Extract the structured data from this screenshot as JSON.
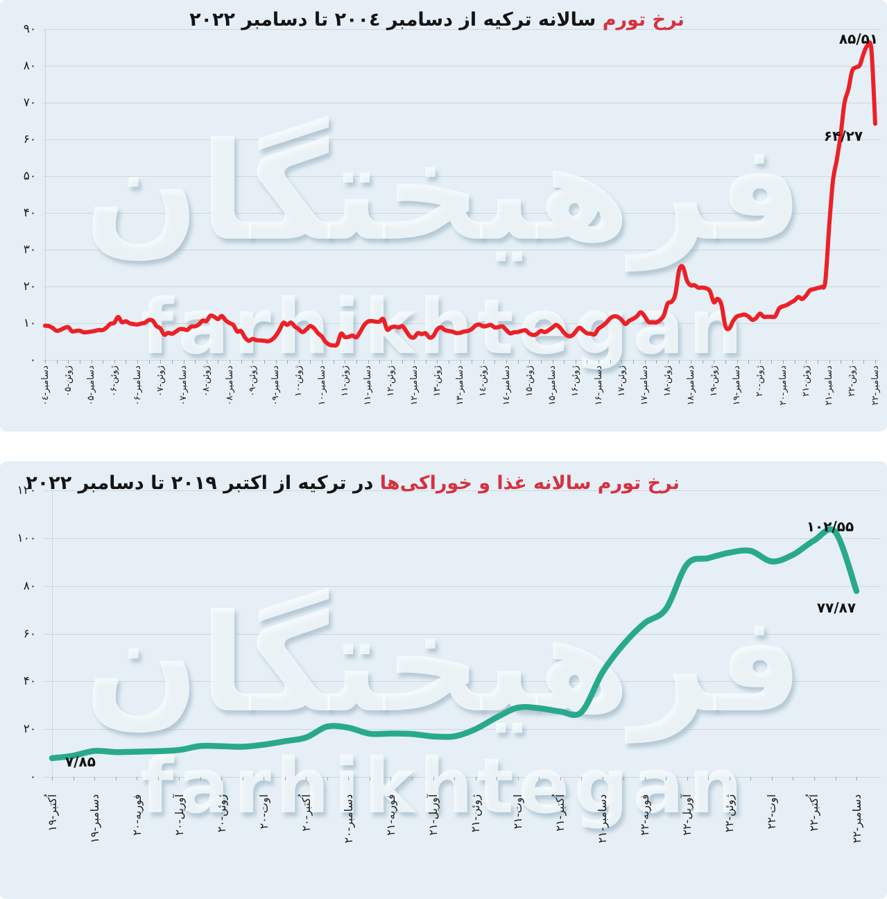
{
  "watermark": {
    "fa": "فرهیختگان",
    "en": "farhikhtegan"
  },
  "colors": {
    "title_highlight": "#d8303f",
    "panel_background": "#e5eff5",
    "line_red": "#eb2127",
    "line_teal": "#29a98b"
  },
  "chart_data": [
    {
      "type": "line",
      "title_highlight": "نرخ تورم",
      "title_rest": "سالانه ترکیه از دسامبر ۲۰۰٤ تا دسامبر ۲۰۲۲",
      "ylabel": "",
      "xlabel": "",
      "ylim": [
        0,
        90
      ],
      "y_grid_step": 10,
      "grid": true,
      "legend": false,
      "y_tick_labels": [
        "۹۰",
        "۸۰",
        "۷۰",
        "۶۰",
        "۵۰",
        "۴۰",
        "۳۰",
        "۲۰",
        "۱۰",
        "۰"
      ],
      "x_tick_labels": [
        "دسامبر-۰٤",
        "ژوئن-۰۵",
        "دسامبر-۰۵",
        "ژوئن-۰۶",
        "دسامبر-۰۶",
        "ژوئن-۰۷",
        "دسامبر-۰۷",
        "ژوئن-۰۸",
        "دسامبر-۰۸",
        "ژوئن-۰۹",
        "دسامبر-۰۹",
        "ژوئن-۱۰",
        "دسامبر-۱۰",
        "ژوئن-۱۱",
        "دسامبر-۱۱",
        "ژوئن-۱۲",
        "دسامبر-۱۲",
        "ژوئن-۱۳",
        "دسامبر-۱۳",
        "ژوئن-۱٤",
        "دسامبر-۱٤",
        "ژوئن-۱۵",
        "دسامبر-۱۵",
        "ژوئن-۱۶",
        "دسامبر-۱۶",
        "ژوئن-۱۷",
        "دسامبر-۱۷",
        "ژوئن-۱۸",
        "دسامبر-۱۸",
        "ژوئن-۱۹",
        "دسامبر-۱۹",
        "ژوئن-۲۰",
        "دسامبر-۲۰",
        "ژوئن-۲۱",
        "دسامبر-۲۱",
        "ژوئن-۲۲",
        "دسامبر-۲۲"
      ],
      "label_every_nth_point": 6,
      "series": [
        {
          "name": "annual-inflation",
          "color": "#eb2127",
          "values": [
            9.32,
            9.23,
            8.69,
            7.94,
            8.18,
            8.7,
            8.95,
            7.82,
            7.91,
            7.99,
            7.52,
            7.61,
            7.72,
            7.93,
            8.15,
            8.16,
            8.83,
            9.86,
            10.12,
            11.69,
            10.26,
            10.55,
            9.98,
            9.79,
            9.65,
            9.93,
            10.16,
            10.86,
            10.72,
            9.23,
            8.6,
            6.9,
            7.39,
            7.12,
            7.7,
            8.4,
            8.39,
            8.17,
            9.1,
            9.15,
            9.66,
            10.74,
            10.61,
            12.06,
            11.77,
            11.13,
            11.99,
            10.76,
            10.06,
            9.5,
            7.73,
            7.89,
            6.13,
            5.24,
            5.73,
            5.39,
            5.33,
            5.27,
            5.08,
            5.53,
            6.53,
            8.19,
            10.13,
            9.56,
            10.19,
            9.1,
            8.37,
            7.58,
            8.33,
            9.24,
            8.62,
            7.29,
            6.4,
            4.9,
            4.16,
            3.99,
            4.26,
            7.17,
            6.24,
            6.31,
            6.65,
            6.15,
            7.66,
            9.48,
            10.45,
            10.61,
            10.43,
            10.43,
            11.14,
            8.28,
            8.87,
            9.07,
            8.88,
            9.19,
            7.8,
            6.37,
            6.16,
            7.31,
            7.03,
            7.29,
            6.13,
            6.51,
            8.3,
            8.88,
            8.17,
            7.88,
            7.71,
            7.32,
            7.4,
            7.75,
            7.89,
            8.39,
            9.38,
            9.66,
            9.16,
            9.32,
            9.54,
            8.86,
            8.96,
            9.15,
            8.17,
            7.24,
            7.55,
            7.61,
            7.91,
            8.09,
            7.2,
            6.81,
            7.14,
            7.95,
            7.58,
            8.1,
            8.81,
            9.58,
            8.78,
            7.46,
            6.57,
            6.58,
            7.64,
            8.79,
            8.05,
            7.28,
            7.16,
            7.0,
            8.53,
            9.22,
            10.13,
            11.29,
            11.87,
            11.72,
            10.9,
            9.79,
            10.68,
            11.2,
            11.9,
            12.98,
            11.92,
            10.35,
            10.26,
            10.23,
            10.85,
            12.15,
            15.39,
            15.85,
            17.9,
            24.52,
            25.24,
            21.62,
            20.3,
            20.35,
            19.67,
            19.71,
            19.5,
            18.71,
            15.72,
            16.65,
            15.01,
            9.26,
            8.55,
            10.56,
            11.84,
            12.15,
            12.37,
            11.86,
            10.94,
            11.39,
            12.62,
            11.76,
            11.77,
            11.75,
            11.89,
            14.03,
            14.6,
            14.97,
            15.61,
            16.19,
            17.14,
            16.59,
            17.53,
            18.95,
            19.25,
            19.58,
            19.89,
            21.31,
            36.08,
            48.69,
            54.44,
            61.14,
            69.97,
            73.5,
            78.62,
            79.6,
            80.21,
            83.45,
            85.51,
            84.39,
            64.27
          ]
        }
      ],
      "annotations": [
        {
          "id": "peak",
          "text": "۸۵/۵۱",
          "value": 85.51
        },
        {
          "id": "last",
          "text": "۶۴/۲۷",
          "value": 64.27
        }
      ]
    },
    {
      "type": "line",
      "title_highlight": "نرخ تورم سالانه غذا و خوراکی‌ها",
      "title_rest": "در ترکیه از اکتبر ۲۰۱۹ تا دسامبر ۲۰۲۲",
      "ylabel": "",
      "xlabel": "",
      "ylim": [
        0,
        120
      ],
      "y_grid_step": 20,
      "grid": true,
      "legend": false,
      "y_tick_labels": [
        "۱۲۰",
        "۱۰۰",
        "۸۰",
        "۶۰",
        "۴۰",
        "۲۰",
        "۰"
      ],
      "x_tick_labels": [
        "اُکتبر-۱۹",
        "دسامبر-۱۹",
        "فوریه-۲۰",
        "آوریل-۲۰",
        "ژوئن-۲۰",
        "اوت-۲۰",
        "اُکتبر-۲۰",
        "دسامبر-۲۰",
        "فوریه-۲۱",
        "آوریل-۲۱",
        "ژوئن-۲۱",
        "اوت-۲۱",
        "اُکتبر-۲۱",
        "دسامبر-۲۱",
        "فوریه-۲۲",
        "آوریل-۲۲",
        "ژوئن-۲۲",
        "اوت-۲۲",
        "اُکتبر-۲۲",
        "دسامبر-۲۲"
      ],
      "label_every_nth_point": 2,
      "series": [
        {
          "name": "annual-food-inflation",
          "color": "#29a98b",
          "values": [
            7.85,
            8.9,
            10.89,
            10.41,
            10.58,
            10.79,
            11.28,
            12.93,
            12.86,
            12.63,
            13.51,
            14.95,
            16.51,
            21.08,
            20.61,
            18.11,
            18.16,
            17.98,
            16.98,
            17.0,
            19.99,
            24.92,
            29.0,
            28.79,
            27.41,
            27.11,
            43.8,
            55.61,
            64.47,
            70.33,
            89.1,
            91.63,
            93.93,
            94.65,
            90.25,
            93.05,
            99.05,
            102.55,
            77.87
          ]
        }
      ],
      "annotations": [
        {
          "id": "start",
          "text": "۷/۸۵",
          "value": 7.85
        },
        {
          "id": "peak",
          "text": "۱۰۲/۵۵",
          "value": 102.55
        },
        {
          "id": "last",
          "text": "۷۷/۸۷",
          "value": 77.87
        }
      ]
    }
  ]
}
